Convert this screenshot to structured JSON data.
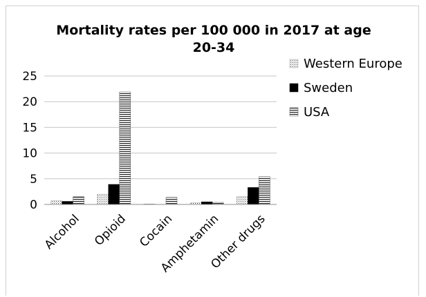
{
  "chart_data": {
    "type": "bar",
    "title_line1": "Mortality rates per 100 000 in 2017 at age",
    "title_line2": "20-34",
    "categories": [
      "Alcohol",
      "Opioid",
      "Cocain",
      "Amphetamin",
      "Other drugs"
    ],
    "series": [
      {
        "name": "Western Europe",
        "values": [
          0.7,
          2.0,
          0.1,
          0.3,
          1.5
        ],
        "pattern": "dots"
      },
      {
        "name": "Sweden",
        "values": [
          0.6,
          3.9,
          0.0,
          0.5,
          3.3
        ],
        "pattern": "solid"
      },
      {
        "name": "USA",
        "values": [
          1.5,
          21.9,
          1.4,
          0.4,
          5.4
        ],
        "pattern": "hlines"
      }
    ],
    "ylim": [
      0,
      25
    ],
    "yticks": [
      0,
      5,
      10,
      15,
      20,
      25
    ],
    "grid": true,
    "legend_position": "right"
  }
}
